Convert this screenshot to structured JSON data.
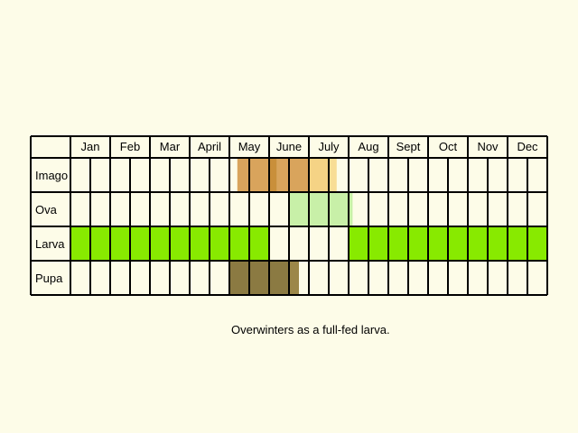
{
  "months": [
    "Jan",
    "Feb",
    "Mar",
    "April",
    "May",
    "June",
    "July",
    "Aug",
    "Sept",
    "Oct",
    "Nov",
    "Dec"
  ],
  "stages": [
    {
      "name": "Imago",
      "segments": [
        {
          "start_week": 8.4,
          "end_week": 10.0,
          "color": "#d9a45c"
        },
        {
          "start_week": 10.0,
          "end_week": 10.4,
          "color": "#c98f3a"
        },
        {
          "start_week": 10.4,
          "end_week": 12.0,
          "color": "#d9a45c"
        },
        {
          "start_week": 12.0,
          "end_week": 13.0,
          "color": "#f5d385"
        },
        {
          "start_week": 13.0,
          "end_week": 13.4,
          "color": "#f8dd95"
        }
      ]
    },
    {
      "name": "Ova",
      "segments": [
        {
          "start_week": 11.0,
          "end_week": 14.2,
          "color": "#c8f0a8"
        }
      ]
    },
    {
      "name": "Larva",
      "segments": [
        {
          "start_week": 0,
          "end_week": 10.0,
          "color": "#88ea00"
        },
        {
          "start_week": 14.0,
          "end_week": 24.0,
          "color": "#88ea00"
        }
      ]
    },
    {
      "name": "Pupa",
      "segments": [
        {
          "start_week": 8.0,
          "end_week": 11.0,
          "color": "#8b7a42"
        },
        {
          "start_week": 11.0,
          "end_week": 11.5,
          "color": "#9c8748"
        }
      ]
    }
  ],
  "caption": "Overwinters as a full-fed larva.",
  "colors": {
    "background": "#fdfce8",
    "grid": "#000000"
  }
}
